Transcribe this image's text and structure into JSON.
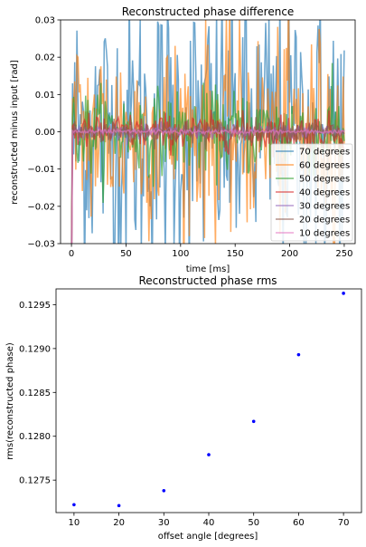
{
  "chart_data": [
    {
      "type": "line",
      "title": "Reconstructed phase difference",
      "xlabel": "time [ms]",
      "ylabel": "reconstructed minus input [rad]",
      "xlim": [
        -10,
        260
      ],
      "ylim": [
        -0.03,
        0.03
      ],
      "xticks": [
        0,
        50,
        100,
        150,
        200,
        250
      ],
      "yticks": [
        -0.03,
        -0.02,
        -0.01,
        0.0,
        0.01,
        0.02,
        0.03
      ],
      "xtick_labels": [
        "0",
        "50",
        "100",
        "150",
        "200",
        "250"
      ],
      "ytick_labels": [
        "−0.03",
        "−0.02",
        "−0.01",
        "0.00",
        "0.01",
        "0.02",
        "0.03"
      ],
      "legend_position": "lower right",
      "grid": false,
      "series": [
        {
          "name": "70 degrees",
          "color": "#1f77b4",
          "amplitude": 0.026
        },
        {
          "name": "60 degrees",
          "color": "#ff7f0e",
          "amplitude": 0.018
        },
        {
          "name": "50 degrees",
          "color": "#2ca02c",
          "amplitude": 0.0075
        },
        {
          "name": "40 degrees",
          "color": "#d62728",
          "amplitude": 0.0032
        },
        {
          "name": "30 degrees",
          "color": "#9467bd",
          "amplitude": 0.0012
        },
        {
          "name": "20 degrees",
          "color": "#8c564b",
          "amplitude": 0.0022
        },
        {
          "name": "10 degrees",
          "color": "#e377c2",
          "amplitude": 0.0004
        }
      ]
    },
    {
      "type": "scatter",
      "title": "Reconstructed phase rms",
      "xlabel": "offset angle [degrees]",
      "ylabel": "rms(reconstructed phase)",
      "xlim": [
        6,
        74
      ],
      "ylim": [
        0.12713,
        0.12968
      ],
      "xticks": [
        10,
        20,
        30,
        40,
        50,
        60,
        70
      ],
      "yticks": [
        0.1275,
        0.128,
        0.1285,
        0.129,
        0.1295
      ],
      "xtick_labels": [
        "10",
        "20",
        "30",
        "40",
        "50",
        "60",
        "70"
      ],
      "ytick_labels": [
        "0.1275",
        "0.1280",
        "0.1285",
        "0.1290",
        "0.1295"
      ],
      "grid": false,
      "marker_color": "#0000ff",
      "x": [
        10,
        20,
        30,
        40,
        50,
        60,
        70
      ],
      "y": [
        0.12722,
        0.12721,
        0.12738,
        0.12779,
        0.12817,
        0.12893,
        0.12963
      ]
    }
  ]
}
